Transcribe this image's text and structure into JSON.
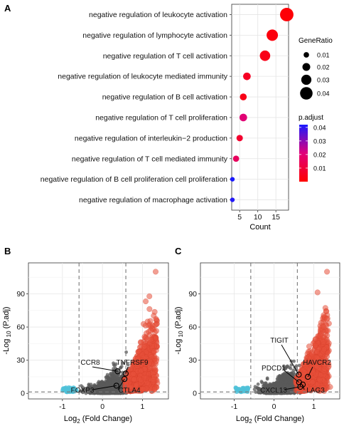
{
  "chart_data": [
    {
      "panel": "A",
      "type": "scatter",
      "xlabel": "Count",
      "xticks": [
        5,
        10,
        15
      ],
      "xlim": [
        2.8,
        18.5
      ],
      "categories": [
        "negative regulation of leukocyte activation",
        "negative regulation of lymphocyte activation",
        "negative regulation of T cell activation",
        "negative regulation of leukocyte mediated immunity",
        "negative regulation of B cell activation",
        "negative regulation of T cell proliferation",
        "negative regulation of interleukin−2 production",
        "negative regulation of T cell mediated immunity",
        "negative regulation of B cell proliferation cell proliferation",
        "negative regulation of macrophage activation"
      ],
      "count": [
        18,
        14,
        12,
        7,
        6,
        6,
        5,
        4,
        3,
        3
      ],
      "gene_ratio": [
        0.044,
        0.035,
        0.031,
        0.019,
        0.016,
        0.019,
        0.014,
        0.013,
        0.006,
        0.006
      ],
      "p_adjust": [
        0.001,
        0.002,
        0.004,
        0.006,
        0.004,
        0.02,
        0.008,
        0.016,
        0.042,
        0.041
      ],
      "legend_size": {
        "title": "GeneRatio",
        "values": [
          0.01,
          0.02,
          0.03,
          0.04
        ],
        "labels": [
          "0.01",
          "0.02",
          "0.03",
          "0.04"
        ]
      },
      "legend_color": {
        "title": "p.adjust",
        "range": [
          0.0,
          0.042
        ],
        "ticks": [
          0.04,
          0.03,
          0.02,
          0.01
        ],
        "labels": [
          "0.04",
          "0.03",
          "0.02",
          "0.01"
        ],
        "low_color": "#ff0000",
        "high_color": "#1a1aff"
      },
      "grid": true
    },
    {
      "panel": "B",
      "type": "scatter",
      "xlabel_base": "Log",
      "xlabel_sub": "2",
      "xlabel_rest": " (Fold Change)",
      "ylabel_base": "-Log",
      "ylabel_sub": " 10",
      "ylabel_rest": " (P.adj)",
      "xlim": [
        -1.85,
        1.65
      ],
      "ylim": [
        -5,
        118
      ],
      "xticks": [
        -1,
        0,
        1
      ],
      "xtick_labels": [
        "-1",
        "0",
        "1"
      ],
      "yticks": [
        0,
        30,
        60,
        90
      ],
      "ytick_labels": [
        "0",
        "30",
        "60",
        "90"
      ],
      "fc_cutoff": [
        -0.585,
        0.585
      ],
      "p_cutoff": 1.3,
      "colors": {
        "up": "#e8513a",
        "down": "#4fc1d8",
        "ns": "#5a5a5a"
      },
      "labeled_genes": [
        {
          "gene": "CCR8",
          "x": 0.38,
          "y": 20
        },
        {
          "gene": "TNFRSF9",
          "x": 0.58,
          "y": 18
        },
        {
          "gene": "FOXP3",
          "x": 0.35,
          "y": 7
        },
        {
          "gene": "CTLA4",
          "x": 0.55,
          "y": 13
        }
      ],
      "grid": true
    },
    {
      "panel": "C",
      "type": "scatter",
      "xlabel_base": "Log",
      "xlabel_sub": "2",
      "xlabel_rest": " (Fold Change)",
      "ylabel_base": "-Log",
      "ylabel_sub": " 10",
      "ylabel_rest": " (P.adj)",
      "xlim": [
        -1.85,
        1.65
      ],
      "ylim": [
        -5,
        118
      ],
      "xticks": [
        -1,
        0,
        1
      ],
      "xtick_labels": [
        "-1",
        "0",
        "1"
      ],
      "yticks": [
        0,
        30,
        60,
        90
      ],
      "ytick_labels": [
        "0",
        "30",
        "60",
        "90"
      ],
      "fc_cutoff": [
        -0.585,
        0.585
      ],
      "p_cutoff": 1.3,
      "colors": {
        "up": "#e8513a",
        "down": "#4fc1d8",
        "ns": "#5a5a5a"
      },
      "labeled_genes": [
        {
          "gene": "TIGIT",
          "x": 0.62,
          "y": 17
        },
        {
          "gene": "HAVCR2",
          "x": 0.85,
          "y": 15
        },
        {
          "gene": "PDCD1",
          "x": 0.63,
          "y": 10
        },
        {
          "gene": "CXCL13",
          "x": 0.66,
          "y": 6
        },
        {
          "gene": "LAG3",
          "x": 0.72,
          "y": 8
        }
      ],
      "grid": true
    }
  ]
}
